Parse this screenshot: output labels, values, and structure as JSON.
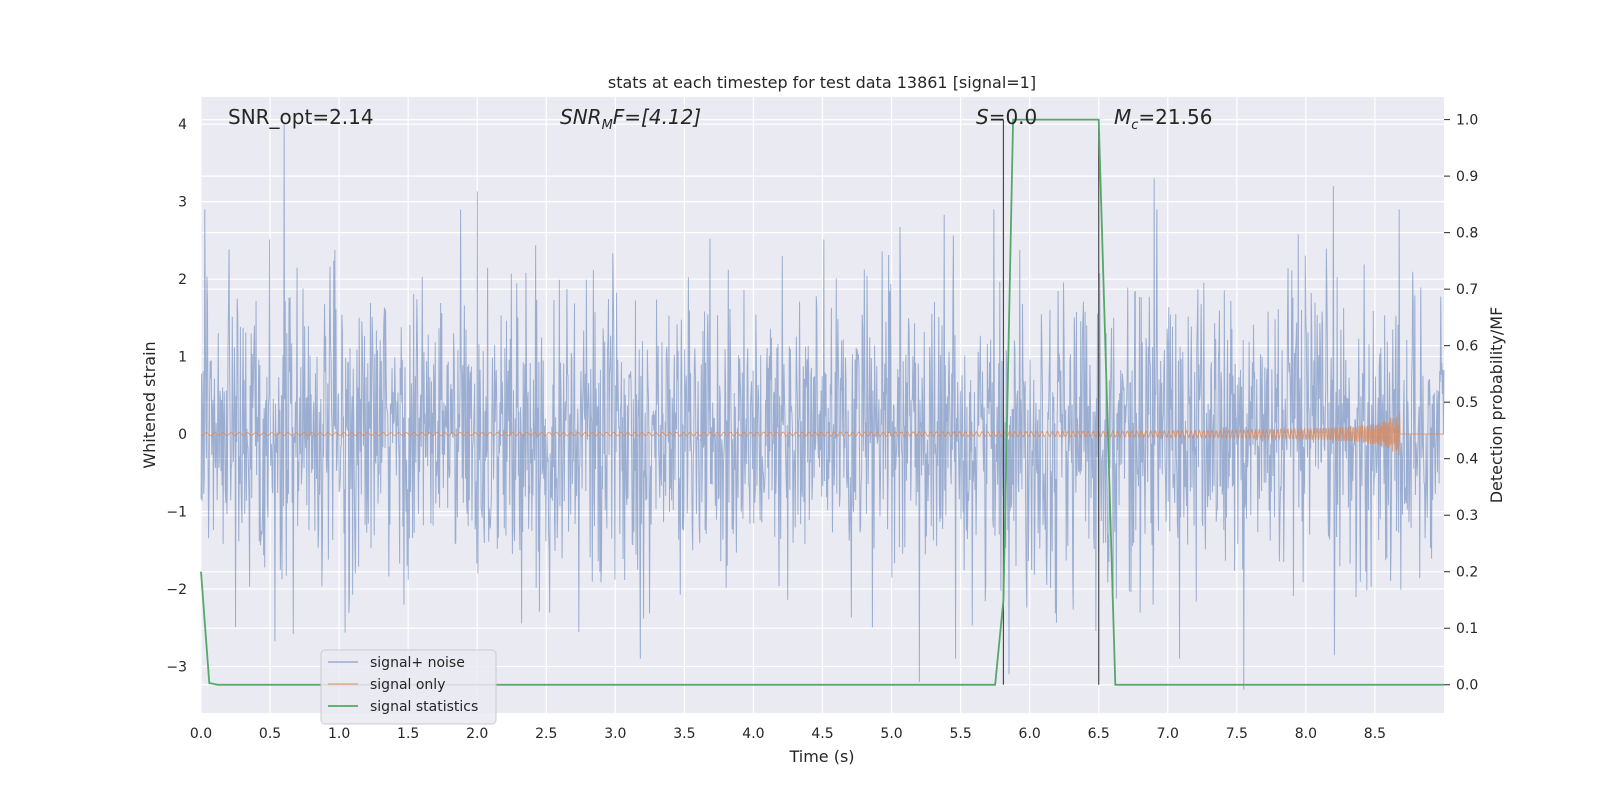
{
  "chart_data": {
    "type": "line",
    "title": "stats at each timestep for test data 13861 [signal=1]",
    "xlabel": "Time (s)",
    "ylabel_left": "Whitened strain",
    "ylabel_right": "Detection probability/MF",
    "xlim": [
      0.0,
      9.0
    ],
    "ylim_left": [
      -3.6,
      4.35
    ],
    "ylim_right": [
      -0.05,
      1.04
    ],
    "x_ticks": [
      "0.0",
      "0.5",
      "1.0",
      "1.5",
      "2.0",
      "2.5",
      "3.0",
      "3.5",
      "4.0",
      "4.5",
      "5.0",
      "5.5",
      "6.0",
      "6.5",
      "7.0",
      "7.5",
      "8.0",
      "8.5"
    ],
    "y_left_ticks": [
      "−3",
      "−2",
      "−1",
      "0",
      "1",
      "2",
      "3",
      "4"
    ],
    "y_right_ticks": [
      "0.0",
      "0.1",
      "0.2",
      "0.3",
      "0.4",
      "0.5",
      "0.6",
      "0.7",
      "0.8",
      "0.9",
      "1.0"
    ],
    "grid": true,
    "legend_position": "lower-left",
    "annotations": {
      "snr_opt": "SNR_opt=2.14",
      "snr_mf_base": "SNR",
      "snr_mf_sub": "M",
      "snr_mf_rest": "F=[4.12]",
      "s_italic": "S",
      "s_rest": "=0.0",
      "mc_base": "M",
      "mc_sub": "c",
      "mc_rest": "=21.56"
    },
    "vertical_lines": [
      5.81,
      6.5
    ],
    "series": [
      {
        "name": "signal+ noise",
        "color": "#4c72b0",
        "axis": "left",
        "description_values": {
          "std": 0.95,
          "n_points": 2304,
          "spikes": [
            [
              0.6,
              4.0
            ],
            [
              2.0,
              3.13
            ],
            [
              6.9,
              3.3
            ],
            [
              8.2,
              3.2
            ],
            [
              5.2,
              -3.2
            ],
            [
              7.55,
              -3.3
            ],
            [
              5.85,
              -3.1
            ]
          ]
        }
      },
      {
        "name": "signal only",
        "color": "#dd8452",
        "axis": "left",
        "chirp": {
          "t_merge": 8.68,
          "peak_amplitude": 0.35
        }
      },
      {
        "name": "signal statistics",
        "color": "#55a868",
        "axis": "right",
        "x": [
          0.0,
          0.06,
          0.12,
          5.75,
          5.81,
          5.88,
          6.5,
          6.62,
          6.65,
          9.0
        ],
        "y": [
          0.2,
          0.003,
          0.0,
          0.0,
          0.15,
          1.0,
          1.0,
          0.0,
          0.0,
          0.0
        ]
      }
    ],
    "colors": {
      "background": "#eaeaf2",
      "grid": "#ffffff",
      "vline": "#4a4a4a"
    }
  }
}
